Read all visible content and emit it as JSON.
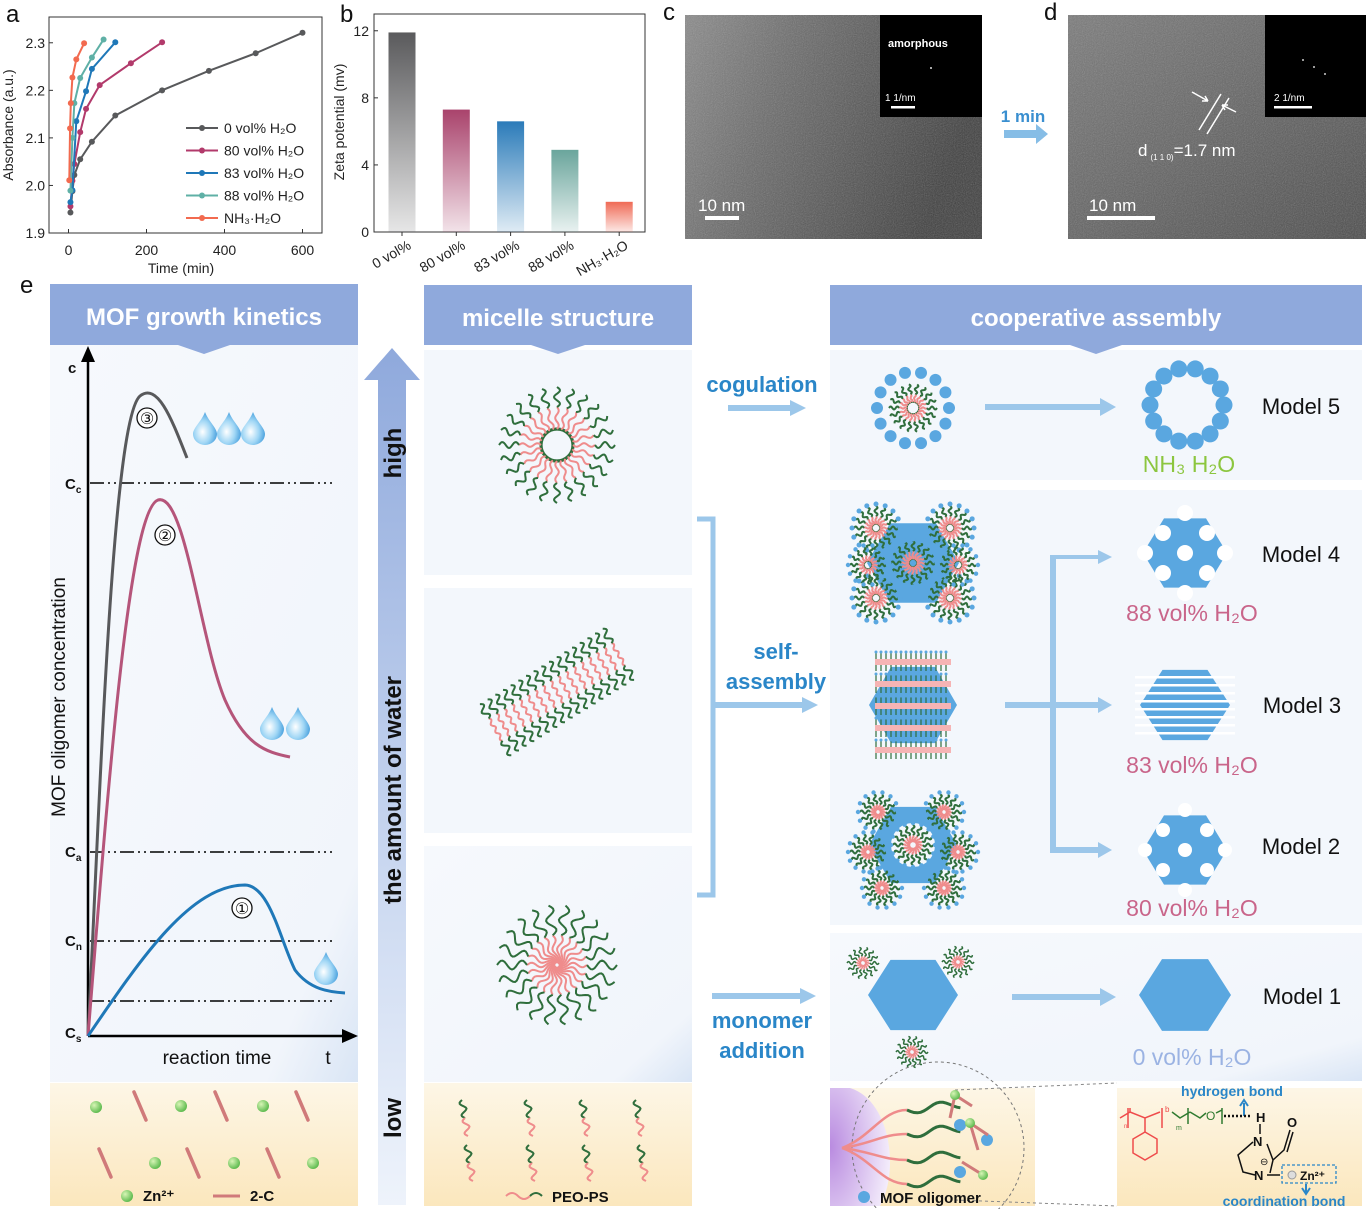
{
  "panel_labels": {
    "a": "a",
    "b": "b",
    "c": "c",
    "d": "d",
    "e": "e"
  },
  "chart_data": [
    {
      "type": "line",
      "xlabel": "Time (min)",
      "ylabel": "Absorbance (a.u.)",
      "xlim": [
        -50,
        650
      ],
      "ylim": [
        1.9,
        2.35
      ],
      "xticks": [
        0,
        200,
        400,
        600
      ],
      "yticks": [
        1.9,
        2.0,
        2.1,
        2.2,
        2.3
      ],
      "legend_position": "right",
      "series": [
        {
          "name": "0 vol% H₂O",
          "color": "#58595b",
          "x": [
            5,
            10,
            15,
            30,
            60,
            120,
            240,
            360,
            480,
            600
          ],
          "y": [
            1.943,
            1.988,
            2.022,
            2.055,
            2.092,
            2.147,
            2.2,
            2.241,
            2.278,
            2.321
          ]
        },
        {
          "name": "80 vol% H₂O",
          "color": "#b23a6b",
          "x": [
            5,
            10,
            15,
            30,
            45,
            80,
            160,
            240
          ],
          "y": [
            1.956,
            2.01,
            2.045,
            2.112,
            2.161,
            2.211,
            2.257,
            2.301
          ]
        },
        {
          "name": "83 vol% H₂O",
          "color": "#1f78b8",
          "x": [
            5,
            10,
            20,
            45,
            60,
            120
          ],
          "y": [
            1.965,
            1.99,
            2.135,
            2.198,
            2.245,
            2.301
          ]
        },
        {
          "name": "88 vol% H₂O",
          "color": "#5fb0a6",
          "x": [
            5,
            10,
            15,
            30,
            60,
            90
          ],
          "y": [
            1.989,
            2.1,
            2.173,
            2.226,
            2.269,
            2.307
          ]
        },
        {
          "name": "NH₃·H₂O",
          "color": "#f26a4f",
          "x": [
            2,
            4,
            6,
            10,
            20,
            40
          ],
          "y": [
            2.011,
            2.12,
            2.173,
            2.227,
            2.265,
            2.299
          ]
        }
      ]
    },
    {
      "type": "bar",
      "xlabel": "",
      "ylabel": "Zeta potential (mv)",
      "ylim": [
        0,
        13
      ],
      "yticks": [
        0,
        4,
        8,
        12
      ],
      "categories": [
        "0 vol%",
        "80 vol%",
        "83 vol%",
        "88 vol%",
        "NH₃·H₂O"
      ],
      "values": [
        11.9,
        7.3,
        6.6,
        4.9,
        1.8
      ],
      "colors": [
        "#5a5a5c",
        "#a9436c",
        "#2b7bb9",
        "#6aa59c",
        "#ef6a55"
      ]
    }
  ],
  "tem": {
    "c": {
      "inset_label": "amorphous",
      "inset_scale": "1 1/nm",
      "scale": "10 nm"
    },
    "arrow_label": "1 min",
    "d": {
      "inset_scale": "2 1/nm",
      "scale": "10 nm",
      "spacing_d": "d",
      "spacing_hkl": "(1 1 0)",
      "spacing_value": "=1.7 nm"
    }
  },
  "panel_e": {
    "kinetics": {
      "header": "MOF growth kinetics",
      "y_axis_symbol": "c",
      "ylabel": "MOF oligomer concentration",
      "xlabel": "reaction  time",
      "x_axis_symbol": "t",
      "levels": [
        {
          "main": "C",
          "sub": "c"
        },
        {
          "main": "C",
          "sub": "a"
        },
        {
          "main": "C",
          "sub": "n"
        },
        {
          "main": "C",
          "sub": "s"
        }
      ],
      "curve_labels": [
        "③",
        "②",
        "①"
      ],
      "legend": {
        "zn": "Zn²⁺",
        "linker": "2-C"
      },
      "colors": {
        "curve3": "#58595b",
        "curve2": "#b5557a",
        "curve1": "#1f78b8"
      }
    },
    "water_axis": {
      "high": "high",
      "label": "the amount of water",
      "low": "low"
    },
    "micelle": {
      "header": "micelle structure",
      "legend": "PEO-PS"
    },
    "processes": {
      "coagulation": "cogulation",
      "self_assembly_1": "self-",
      "self_assembly_2": "assembly",
      "monomer_1": "monomer",
      "monomer_2": "addition"
    },
    "cooperative": {
      "header": "cooperative assembly",
      "models": [
        {
          "name": "Model 5",
          "condition": "NH₃ H₂O",
          "color": "#8cc63f"
        },
        {
          "name": "Model 4",
          "condition": "88 vol% H₂O",
          "color": "#c9658a"
        },
        {
          "name": "Model 3",
          "condition": "83 vol% H₂O",
          "color": "#c9658a"
        },
        {
          "name": "Model 2",
          "condition": "80 vol% H₂O",
          "color": "#c9658a"
        },
        {
          "name": "Model 1",
          "condition": "0 vol% H₂O",
          "color": "#9bb3e3"
        }
      ],
      "inset": {
        "oligomer": "MOF oligomer",
        "hbond": "hydrogen bond",
        "cbond": "coordination bond",
        "zn": "Zn²⁺",
        "n_label": "n",
        "b_label": "b",
        "m_label": "m",
        "o_atom": "O",
        "n_atom": "N",
        "h_atom": "H",
        "co_o": "O",
        "minus": "⊖"
      }
    },
    "colors": {
      "header": "#8fa9dc",
      "accent": "#2a86c8",
      "mof": "#5aa7e0",
      "peo": "#2f6e3c",
      "ps": "#ef8c8c"
    }
  }
}
